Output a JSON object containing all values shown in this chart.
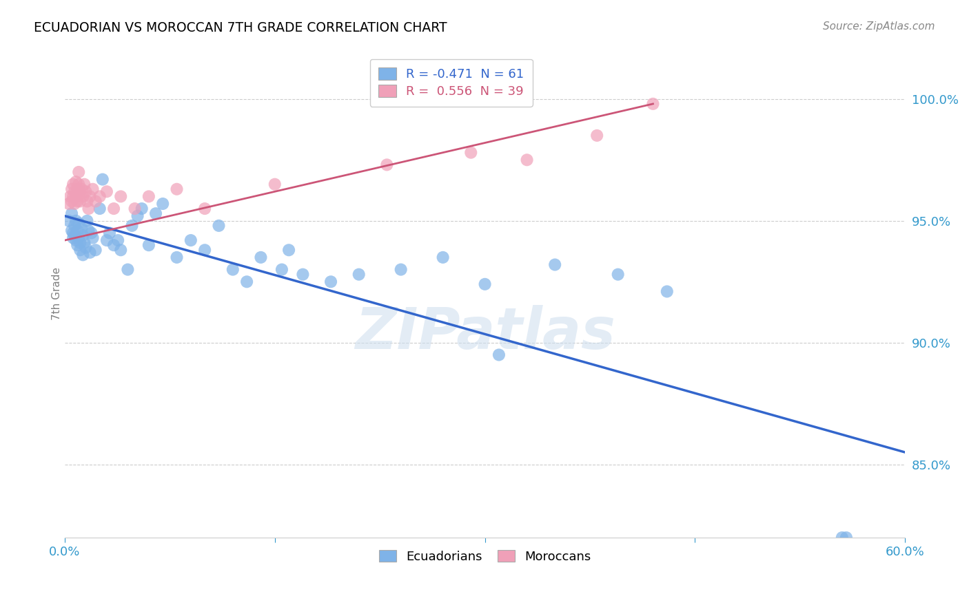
{
  "title": "ECUADORIAN VS MOROCCAN 7TH GRADE CORRELATION CHART",
  "source": "Source: ZipAtlas.com",
  "ylabel": "7th Grade",
  "yticks": [
    "85.0%",
    "90.0%",
    "95.0%",
    "100.0%"
  ],
  "ytick_vals": [
    0.85,
    0.9,
    0.95,
    1.0
  ],
  "xlim": [
    0.0,
    0.6
  ],
  "ylim": [
    0.82,
    1.02
  ],
  "R_blue": -0.471,
  "N_blue": 61,
  "R_pink": 0.556,
  "N_pink": 39,
  "legend_label_blue": "Ecuadorians",
  "legend_label_pink": "Moroccans",
  "blue_color": "#7FB3E8",
  "pink_color": "#F0A0B8",
  "line_blue": "#3366CC",
  "line_pink": "#CC5577",
  "watermark": "ZIPatlas",
  "blue_line_x0": 0.0,
  "blue_line_y0": 0.952,
  "blue_line_x1": 0.6,
  "blue_line_y1": 0.855,
  "pink_line_x0": 0.0,
  "pink_line_y0": 0.942,
  "pink_line_x1": 0.42,
  "pink_line_y1": 0.998,
  "blue_x": [
    0.003,
    0.005,
    0.005,
    0.006,
    0.006,
    0.007,
    0.007,
    0.008,
    0.008,
    0.009,
    0.009,
    0.01,
    0.01,
    0.011,
    0.011,
    0.012,
    0.013,
    0.013,
    0.014,
    0.015,
    0.016,
    0.017,
    0.018,
    0.019,
    0.02,
    0.022,
    0.025,
    0.027,
    0.03,
    0.032,
    0.035,
    0.038,
    0.04,
    0.045,
    0.048,
    0.052,
    0.055,
    0.06,
    0.065,
    0.07,
    0.08,
    0.09,
    0.1,
    0.11,
    0.12,
    0.13,
    0.14,
    0.155,
    0.16,
    0.17,
    0.19,
    0.21,
    0.24,
    0.27,
    0.3,
    0.31,
    0.35,
    0.395,
    0.43,
    0.555,
    0.558
  ],
  "blue_y": [
    0.95,
    0.953,
    0.946,
    0.945,
    0.943,
    0.948,
    0.944,
    0.942,
    0.95,
    0.946,
    0.94,
    0.949,
    0.943,
    0.941,
    0.938,
    0.947,
    0.944,
    0.936,
    0.941,
    0.939,
    0.95,
    0.946,
    0.937,
    0.945,
    0.943,
    0.938,
    0.955,
    0.967,
    0.942,
    0.945,
    0.94,
    0.942,
    0.938,
    0.93,
    0.948,
    0.952,
    0.955,
    0.94,
    0.953,
    0.957,
    0.935,
    0.942,
    0.938,
    0.948,
    0.93,
    0.925,
    0.935,
    0.93,
    0.938,
    0.928,
    0.925,
    0.928,
    0.93,
    0.935,
    0.924,
    0.895,
    0.932,
    0.928,
    0.921,
    0.82,
    0.82
  ],
  "pink_x": [
    0.003,
    0.004,
    0.005,
    0.005,
    0.006,
    0.006,
    0.007,
    0.007,
    0.008,
    0.008,
    0.009,
    0.009,
    0.01,
    0.01,
    0.011,
    0.011,
    0.012,
    0.013,
    0.014,
    0.015,
    0.016,
    0.017,
    0.018,
    0.02,
    0.022,
    0.025,
    0.03,
    0.035,
    0.04,
    0.05,
    0.06,
    0.08,
    0.1,
    0.15,
    0.23,
    0.29,
    0.33,
    0.38,
    0.42
  ],
  "pink_y": [
    0.957,
    0.96,
    0.963,
    0.958,
    0.965,
    0.96,
    0.962,
    0.957,
    0.966,
    0.96,
    0.958,
    0.963,
    0.97,
    0.965,
    0.962,
    0.958,
    0.963,
    0.96,
    0.965,
    0.962,
    0.958,
    0.955,
    0.96,
    0.963,
    0.958,
    0.96,
    0.962,
    0.955,
    0.96,
    0.955,
    0.96,
    0.963,
    0.955,
    0.965,
    0.973,
    0.978,
    0.975,
    0.985,
    0.998
  ]
}
